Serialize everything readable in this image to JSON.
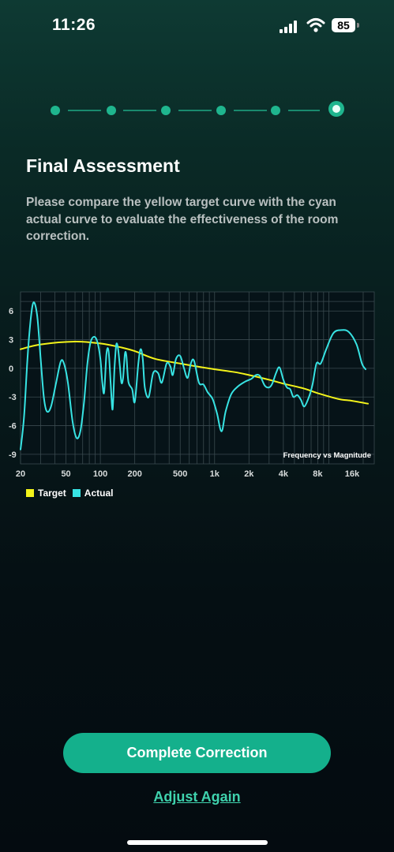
{
  "status_bar": {
    "time": "11:26",
    "battery": "85"
  },
  "stepper": {
    "total_steps": 6,
    "current_step": 6
  },
  "header": {
    "title": "Final Assessment",
    "description": "Please compare the yellow target curve with the cyan actual curve to evaluate the effectiveness of the room correction."
  },
  "colors": {
    "accent": "#14b08c",
    "target": "#f3f31a",
    "actual": "#37e3e3",
    "link": "#3fd2ad"
  },
  "chart_data": {
    "type": "line",
    "annotation": "Frequency vs Magnitude",
    "x_scale": "log",
    "xlim": [
      20,
      25000
    ],
    "ylim": [
      -10,
      8
    ],
    "x_tick_values": [
      20,
      50,
      100,
      200,
      500,
      1000,
      2000,
      4000,
      8000,
      16000
    ],
    "x_tick_labels": [
      "20",
      "50",
      "100",
      "200",
      "500",
      "1k",
      "2k",
      "4k",
      "8k",
      "16k"
    ],
    "y_ticks": [
      6,
      3,
      0,
      -3,
      -6,
      -9
    ],
    "grid": true,
    "legend_position": "bottom-left",
    "series": [
      {
        "name": "Target",
        "color": "#f3f31a",
        "points": [
          [
            20,
            2.0
          ],
          [
            30,
            2.5
          ],
          [
            60,
            2.8
          ],
          [
            100,
            2.6
          ],
          [
            150,
            2.2
          ],
          [
            200,
            1.8
          ],
          [
            300,
            1.0
          ],
          [
            500,
            0.5
          ],
          [
            700,
            0.2
          ],
          [
            1000,
            -0.1
          ],
          [
            1500,
            -0.4
          ],
          [
            2000,
            -0.7
          ],
          [
            3000,
            -1.2
          ],
          [
            4000,
            -1.6
          ],
          [
            6000,
            -2.1
          ],
          [
            8000,
            -2.6
          ],
          [
            12000,
            -3.2
          ],
          [
            16000,
            -3.4
          ],
          [
            22000,
            -3.7
          ]
        ]
      },
      {
        "name": "Actual",
        "color": "#37e3e3",
        "points": [
          [
            20,
            -8.5
          ],
          [
            21.5,
            -5
          ],
          [
            23,
            1
          ],
          [
            24.5,
            5
          ],
          [
            26,
            6.9
          ],
          [
            28,
            5.5
          ],
          [
            30,
            1
          ],
          [
            32,
            -3
          ],
          [
            34,
            -4.5
          ],
          [
            37,
            -4
          ],
          [
            41,
            -1.5
          ],
          [
            45,
            0.7
          ],
          [
            48,
            0.5
          ],
          [
            52,
            -1.5
          ],
          [
            57,
            -5.5
          ],
          [
            62,
            -7.3
          ],
          [
            67,
            -6.5
          ],
          [
            72,
            -3.5
          ],
          [
            77,
            0.5
          ],
          [
            82,
            2.7
          ],
          [
            88,
            3.3
          ],
          [
            94,
            2.8
          ],
          [
            100,
            1
          ],
          [
            104,
            -1.5
          ],
          [
            108,
            -2.5
          ],
          [
            113,
            1.5
          ],
          [
            118,
            1.8
          ],
          [
            123,
            -1.5
          ],
          [
            128,
            -4.3
          ],
          [
            133,
            0
          ],
          [
            138,
            2.5
          ],
          [
            143,
            2
          ],
          [
            148,
            0.3
          ],
          [
            153,
            -1.5
          ],
          [
            158,
            -1
          ],
          [
            164,
            1.5
          ],
          [
            169,
            1.3
          ],
          [
            176,
            -1.4
          ],
          [
            190,
            -2.2
          ],
          [
            200,
            -3.5
          ],
          [
            215,
            0.5
          ],
          [
            225,
            2
          ],
          [
            235,
            1
          ],
          [
            245,
            -2
          ],
          [
            265,
            -3
          ],
          [
            290,
            -0.5
          ],
          [
            320,
            -0.5
          ],
          [
            345,
            -1.5
          ],
          [
            380,
            0.5
          ],
          [
            410,
            0.2
          ],
          [
            430,
            -0.7
          ],
          [
            460,
            1
          ],
          [
            500,
            1.3
          ],
          [
            540,
            0
          ],
          [
            580,
            -1
          ],
          [
            620,
            0.5
          ],
          [
            660,
            0.8
          ],
          [
            730,
            -1.5
          ],
          [
            800,
            -1.7
          ],
          [
            870,
            -2.5
          ],
          [
            960,
            -3.2
          ],
          [
            1050,
            -4.7
          ],
          [
            1150,
            -6.6
          ],
          [
            1250,
            -4.5
          ],
          [
            1400,
            -2.7
          ],
          [
            1600,
            -1.9
          ],
          [
            1850,
            -1.4
          ],
          [
            2100,
            -1.1
          ],
          [
            2300,
            -0.7
          ],
          [
            2500,
            -0.8
          ],
          [
            2750,
            -1.8
          ],
          [
            3000,
            -2
          ],
          [
            3200,
            -1.6
          ],
          [
            3450,
            -0.5
          ],
          [
            3700,
            0.1
          ],
          [
            4000,
            -1.2
          ],
          [
            4300,
            -2
          ],
          [
            4600,
            -2.2
          ],
          [
            4900,
            -3
          ],
          [
            5300,
            -2.8
          ],
          [
            5700,
            -3.3
          ],
          [
            6100,
            -4
          ],
          [
            6700,
            -3
          ],
          [
            7200,
            -1.7
          ],
          [
            7800,
            0.5
          ],
          [
            8500,
            0.5
          ],
          [
            9500,
            2
          ],
          [
            11000,
            3.7
          ],
          [
            13000,
            4
          ],
          [
            15000,
            3.8
          ],
          [
            17500,
            2.5
          ],
          [
            19500,
            0.5
          ],
          [
            21000,
            -0.1
          ]
        ]
      }
    ]
  },
  "actions": {
    "primary_label": "Complete Correction",
    "secondary_label": "Adjust Again"
  }
}
